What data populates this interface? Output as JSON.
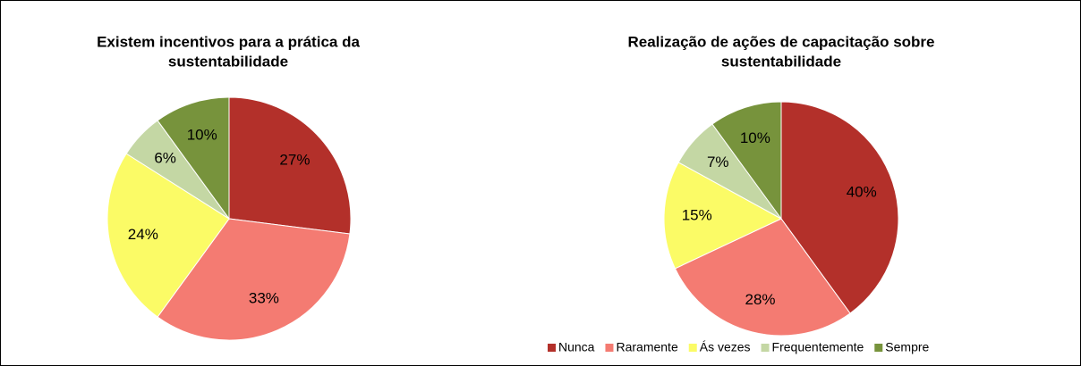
{
  "legend": {
    "items": [
      "Nunca",
      "Raramente",
      "Ás vezes",
      "Frequentemente",
      "Sempre"
    ],
    "colors": [
      "#b3302a",
      "#f47b72",
      "#fbfb66",
      "#c4d7a4",
      "#77933c"
    ]
  },
  "chart_data": [
    {
      "type": "pie",
      "title": [
        "Existem incentivos para a prática da",
        "sustentabilidade"
      ],
      "values": [
        27,
        33,
        24,
        6,
        10
      ],
      "value_labels": [
        "27%",
        "33%",
        "24%",
        "6%",
        "10%"
      ]
    },
    {
      "type": "pie",
      "title": [
        "Realização de ações de capacitação sobre",
        "sustentabilidade"
      ],
      "values": [
        40,
        28,
        15,
        7,
        10
      ],
      "value_labels": [
        "40%",
        "28%",
        "15%",
        "7%",
        "10%"
      ]
    }
  ]
}
